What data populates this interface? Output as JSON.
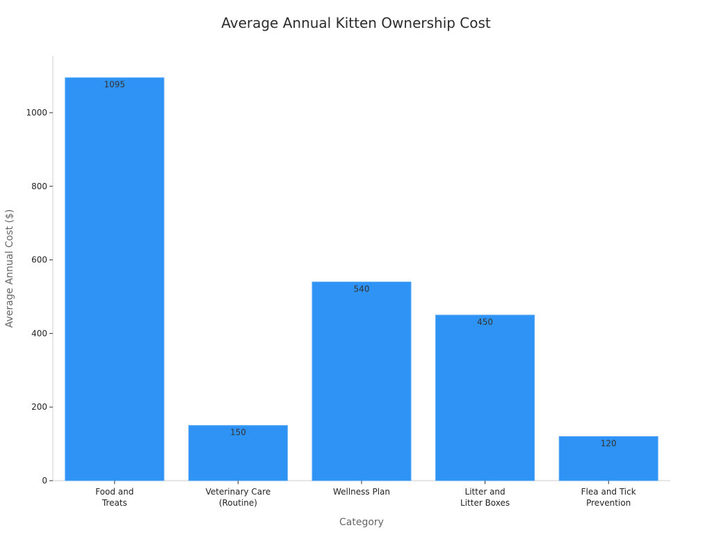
{
  "chart_data": {
    "type": "bar",
    "title": "Average Annual Kitten Ownership Cost",
    "xlabel": "Category",
    "ylabel": "Average Annual Cost ($)",
    "categories": [
      [
        "Food and",
        "Treats"
      ],
      [
        "Veterinary Care",
        "(Routine)"
      ],
      [
        "Wellness Plan"
      ],
      [
        "Litter and",
        "Litter Boxes"
      ],
      [
        "Flea and Tick",
        "Prevention"
      ]
    ],
    "values": [
      1095,
      150,
      540,
      450,
      120
    ],
    "data_labels": [
      "1095",
      "150",
      "540",
      "450",
      "120"
    ],
    "ylim": [
      0,
      1155
    ],
    "yticks": [
      0,
      200,
      400,
      600,
      800,
      1000
    ],
    "grid": false,
    "legend": "none",
    "colors": {
      "bar_fill": "#2e93f5",
      "bar_edge": "#5aa9f7"
    }
  }
}
